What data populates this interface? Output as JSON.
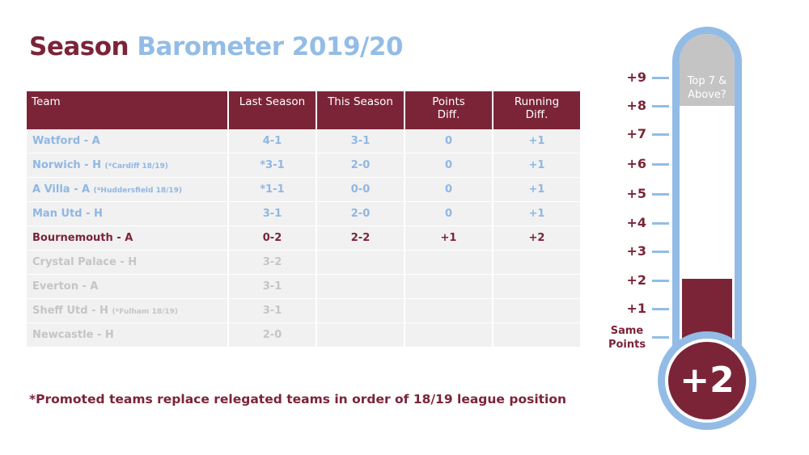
{
  "title": {
    "part1": "Season",
    "part2": "Barometer 2019/20"
  },
  "columns": [
    {
      "l1": "Team",
      "l2": ""
    },
    {
      "l1": "Last Season",
      "l2": ""
    },
    {
      "l1": "This Season",
      "l2": ""
    },
    {
      "l1": "Points",
      "l2": "Diff."
    },
    {
      "l1": "Running",
      "l2": "Diff."
    }
  ],
  "rows": [
    {
      "team": "Watford - A",
      "note": "",
      "last": "4-1",
      "this": "3-1",
      "diff": "0",
      "running": "+1",
      "state": "played"
    },
    {
      "team": "Norwich - H",
      "note": "(*Cardiff 18/19)",
      "last": "*3-1",
      "this": "2-0",
      "diff": "0",
      "running": "+1",
      "state": "played"
    },
    {
      "team": "A Villa - A",
      "note": "(*Huddersfield 18/19)",
      "last": "*1-1",
      "this": "0-0",
      "diff": "0",
      "running": "+1",
      "state": "played"
    },
    {
      "team": "Man Utd - H",
      "note": "",
      "last": "3-1",
      "this": "2-0",
      "diff": "0",
      "running": "+1",
      "state": "played"
    },
    {
      "team": "Bournemouth - A",
      "note": "",
      "last": "0-2",
      "this": "2-2",
      "diff": "+1",
      "running": "+2",
      "state": "current"
    },
    {
      "team": "Crystal Palace - H",
      "note": "",
      "last": "3-2",
      "this": "",
      "diff": "",
      "running": "",
      "state": "future"
    },
    {
      "team": "Everton - A",
      "note": "",
      "last": "3-1",
      "this": "",
      "diff": "",
      "running": "",
      "state": "future"
    },
    {
      "team": "Sheff Utd - H",
      "note": "(*Fulham 18/19)",
      "last": "3-1",
      "this": "",
      "diff": "",
      "running": "",
      "state": "future"
    },
    {
      "team": "Newcastle - H",
      "note": "",
      "last": "2-0",
      "this": "",
      "diff": "",
      "running": "",
      "state": "future"
    }
  ],
  "footnote": "*Promoted teams replace relegated teams in order of 18/19 league position",
  "thermometer": {
    "scale": [
      "+9",
      "+8",
      "+7",
      "+6",
      "+5",
      "+4",
      "+3",
      "+2",
      "+1"
    ],
    "same_l1": "Same",
    "same_l2": "Points",
    "top_l1": "Top 7 &",
    "top_l2": "Above?",
    "value": "+2",
    "level": 2
  },
  "colors": {
    "maroon": "#7b2438",
    "light_blue": "#92bce6",
    "grey": "#c4c4c4"
  }
}
